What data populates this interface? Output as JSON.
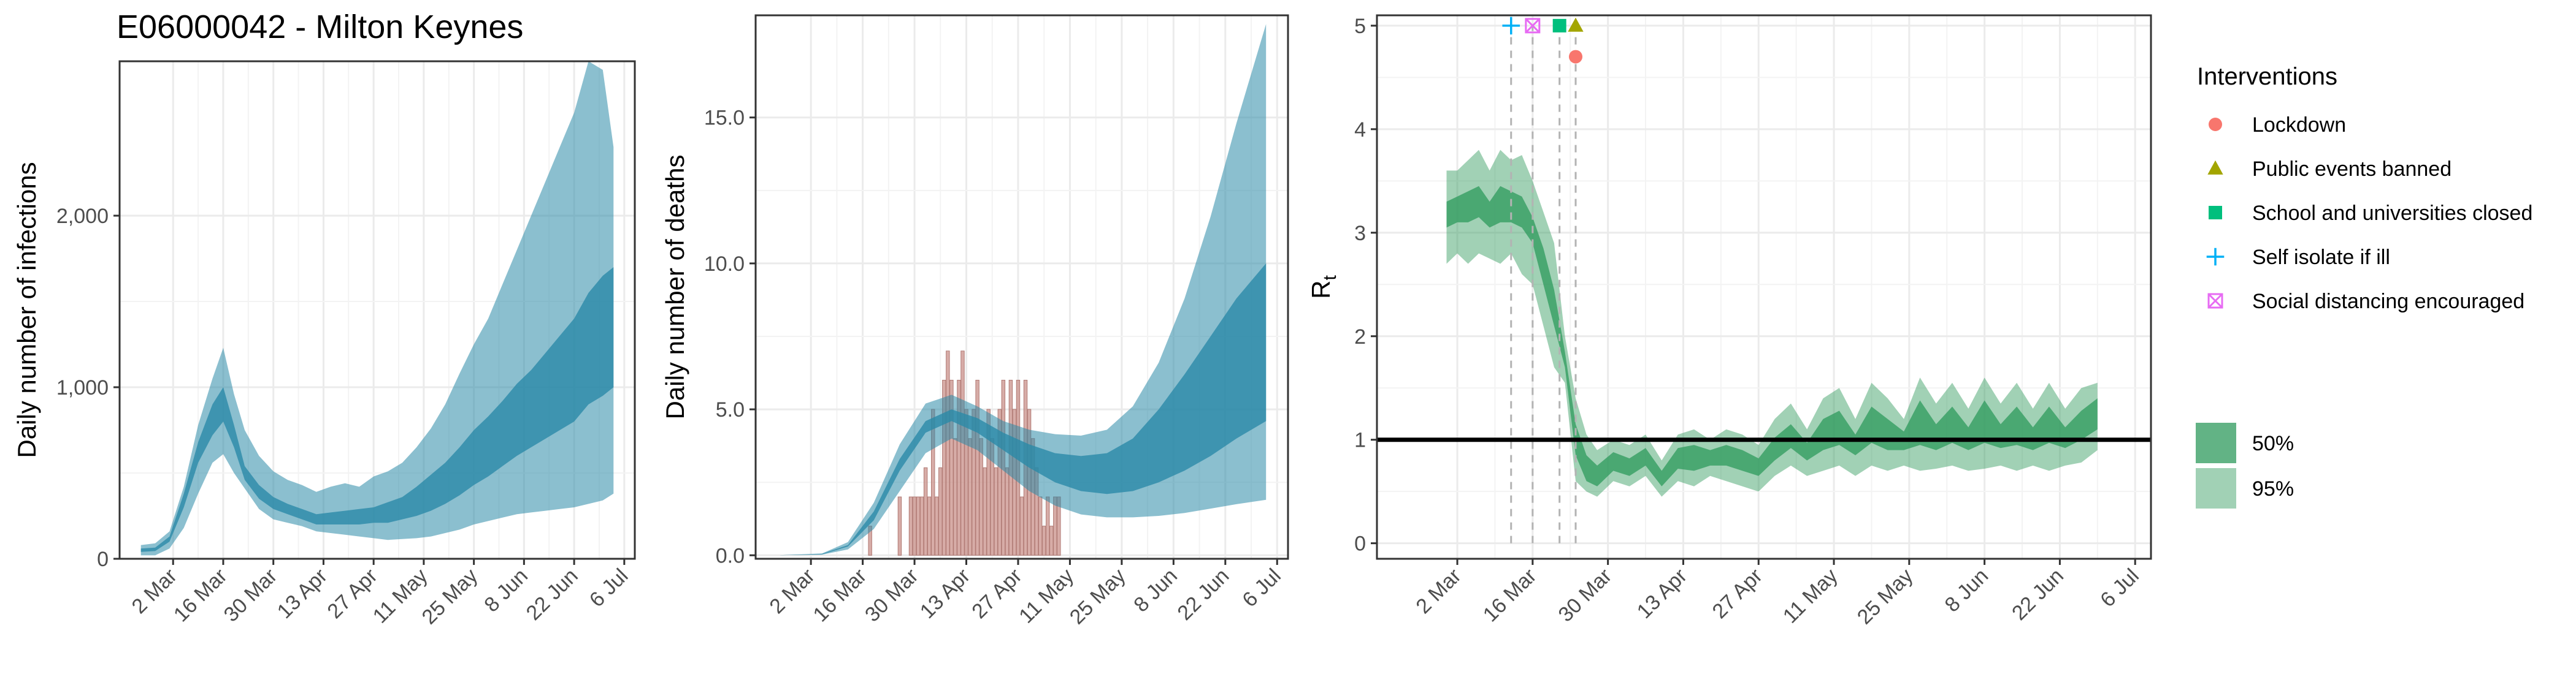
{
  "title": "E06000042 - Milton Keynes",
  "colors": {
    "infection_band": "#2b8aa8",
    "deaths_bar": "#c9908a",
    "rt_band": "#2e9a5c",
    "lockdown": "#f8766d",
    "public_events": "#a3a500",
    "schools": "#00bf7d",
    "self_isolate": "#00b0f6",
    "social_distancing": "#e76bf3"
  },
  "legend": {
    "interventions_title": "Interventions",
    "interventions": [
      {
        "label": "Lockdown",
        "shape": "circle",
        "color": "#f8766d"
      },
      {
        "label": "Public events banned",
        "shape": "triangle",
        "color": "#a3a500"
      },
      {
        "label": "School and universities closed",
        "shape": "square",
        "color": "#00bf7d"
      },
      {
        "label": "Self isolate if ill",
        "shape": "plus",
        "color": "#00b0f6"
      },
      {
        "label": "Social distancing encouraged",
        "shape": "boxx",
        "color": "#e76bf3"
      }
    ],
    "ci": [
      {
        "label": "50%",
        "color": "#2e9a5c",
        "opacity": 0.75
      },
      {
        "label": "95%",
        "color": "#2e9a5c",
        "opacity": 0.45
      }
    ]
  },
  "chart_data": [
    {
      "type": "area",
      "id": "infections",
      "title": "E06000042 - Milton Keynes",
      "ylabel": "Daily number of infections",
      "xlabel": "",
      "date_start": "2020-02-22",
      "date_end": "2020-07-03",
      "ylim": [
        0,
        2900
      ],
      "grid": true,
      "yticks": [
        0,
        1000,
        2000
      ],
      "ytick_labels": [
        "0",
        "1,000",
        "2,000"
      ],
      "xticks": [
        "2020-03-02",
        "2020-03-16",
        "2020-03-30",
        "2020-04-13",
        "2020-04-27",
        "2020-05-11",
        "2020-05-25",
        "2020-06-08",
        "2020-06-22",
        "2020-07-06"
      ],
      "xtick_labels": [
        "2 Mar",
        "16 Mar",
        "30 Mar",
        "13 Apr",
        "27 Apr",
        "11 May",
        "25 May",
        "8 Jun",
        "22 Jun",
        "6 Jul"
      ],
      "dates": [
        "2020-02-22",
        "2020-02-26",
        "2020-03-01",
        "2020-03-05",
        "2020-03-09",
        "2020-03-13",
        "2020-03-16",
        "2020-03-19",
        "2020-03-22",
        "2020-03-26",
        "2020-03-30",
        "2020-04-03",
        "2020-04-07",
        "2020-04-11",
        "2020-04-15",
        "2020-04-19",
        "2020-04-23",
        "2020-04-27",
        "2020-05-01",
        "2020-05-05",
        "2020-05-09",
        "2020-05-13",
        "2020-05-17",
        "2020-05-21",
        "2020-05-25",
        "2020-05-29",
        "2020-06-02",
        "2020-06-06",
        "2020-06-10",
        "2020-06-14",
        "2020-06-18",
        "2020-06-22",
        "2020-06-26",
        "2020-06-30",
        "2020-07-03"
      ],
      "ci95_low": [
        20,
        20,
        60,
        180,
        380,
        560,
        610,
        500,
        410,
        290,
        230,
        210,
        190,
        160,
        150,
        140,
        130,
        120,
        110,
        115,
        120,
        130,
        150,
        170,
        200,
        220,
        240,
        260,
        270,
        280,
        290,
        300,
        320,
        340,
        380
      ],
      "ci95_high": [
        80,
        90,
        160,
        420,
        780,
        1050,
        1230,
        960,
        750,
        600,
        510,
        460,
        430,
        390,
        420,
        440,
        420,
        480,
        510,
        560,
        650,
        760,
        900,
        1080,
        1250,
        1400,
        1600,
        1800,
        2000,
        2200,
        2400,
        2600,
        2900,
        2850,
        2400
      ],
      "ci50_low": [
        40,
        45,
        100,
        300,
        560,
        720,
        800,
        650,
        460,
        350,
        290,
        260,
        230,
        200,
        200,
        200,
        200,
        210,
        210,
        230,
        250,
        280,
        320,
        370,
        430,
        480,
        540,
        600,
        650,
        700,
        750,
        800,
        900,
        950,
        1000
      ],
      "ci50_high": [
        60,
        65,
        130,
        380,
        680,
        900,
        1000,
        780,
        540,
        430,
        360,
        320,
        290,
        260,
        270,
        280,
        290,
        300,
        330,
        360,
        420,
        490,
        560,
        650,
        750,
        830,
        920,
        1020,
        1100,
        1200,
        1300,
        1400,
        1550,
        1650,
        1700
      ]
    },
    {
      "type": "bar",
      "id": "deaths",
      "title": "",
      "ylabel": "Daily number of deaths",
      "xlabel": "",
      "date_start": "2020-02-22",
      "date_end": "2020-07-03",
      "ylim": [
        0,
        18.5
      ],
      "grid": true,
      "yticks": [
        0,
        5,
        10,
        15
      ],
      "ytick_labels": [
        "0.0",
        "5.0",
        "10.0",
        "15.0"
      ],
      "xticks": [
        "2020-03-02",
        "2020-03-16",
        "2020-03-30",
        "2020-04-13",
        "2020-04-27",
        "2020-05-11",
        "2020-05-25",
        "2020-06-08",
        "2020-06-22",
        "2020-07-06"
      ],
      "xtick_labels": [
        "2 Mar",
        "16 Mar",
        "30 Mar",
        "13 Apr",
        "27 Apr",
        "11 May",
        "25 May",
        "8 Jun",
        "22 Jun",
        "6 Jul"
      ],
      "bar_dates": [
        "2020-03-18",
        "2020-03-26",
        "2020-03-29",
        "2020-03-30",
        "2020-03-31",
        "2020-04-01",
        "2020-04-02",
        "2020-04-03",
        "2020-04-04",
        "2020-04-05",
        "2020-04-06",
        "2020-04-07",
        "2020-04-08",
        "2020-04-09",
        "2020-04-10",
        "2020-04-11",
        "2020-04-12",
        "2020-04-13",
        "2020-04-14",
        "2020-04-15",
        "2020-04-16",
        "2020-04-17",
        "2020-04-18",
        "2020-04-19",
        "2020-04-20",
        "2020-04-21",
        "2020-04-22",
        "2020-04-23",
        "2020-04-24",
        "2020-04-25",
        "2020-04-26",
        "2020-04-27",
        "2020-04-28",
        "2020-04-29",
        "2020-04-30",
        "2020-05-01",
        "2020-05-02",
        "2020-05-03",
        "2020-05-04",
        "2020-05-05",
        "2020-05-06",
        "2020-05-07",
        "2020-05-08"
      ],
      "bar_values": [
        1,
        2,
        2,
        2,
        2,
        2,
        3,
        2,
        5,
        2,
        3,
        6,
        7,
        6,
        4,
        6,
        7,
        5,
        4,
        5,
        6,
        4,
        3,
        5,
        4,
        3,
        5,
        6,
        3,
        6,
        5,
        6,
        2,
        6,
        5,
        4,
        3,
        2,
        1,
        2,
        1,
        2,
        2
      ],
      "dates": [
        "2020-02-22",
        "2020-03-05",
        "2020-03-12",
        "2020-03-19",
        "2020-03-26",
        "2020-04-02",
        "2020-04-09",
        "2020-04-16",
        "2020-04-23",
        "2020-04-30",
        "2020-05-07",
        "2020-05-14",
        "2020-05-21",
        "2020-05-28",
        "2020-06-04",
        "2020-06-11",
        "2020-06-18",
        "2020-06-25",
        "2020-07-03"
      ],
      "ci95_low": [
        0,
        0.02,
        0.2,
        0.9,
        2.2,
        3.5,
        4.0,
        3.6,
        2.9,
        2.2,
        1.7,
        1.4,
        1.3,
        1.3,
        1.35,
        1.45,
        1.6,
        1.75,
        1.9
      ],
      "ci95_high": [
        0,
        0.06,
        0.45,
        1.8,
        3.8,
        5.2,
        5.5,
        5.1,
        4.6,
        4.3,
        4.15,
        4.1,
        4.3,
        5.1,
        6.6,
        8.8,
        11.6,
        14.8,
        18.2
      ],
      "ci50_low": [
        0,
        0.03,
        0.3,
        1.2,
        2.9,
        4.2,
        4.6,
        4.2,
        3.6,
        3.0,
        2.5,
        2.2,
        2.1,
        2.2,
        2.5,
        2.9,
        3.4,
        4.0,
        4.6
      ],
      "ci50_high": [
        0,
        0.05,
        0.35,
        1.5,
        3.3,
        4.6,
        5.0,
        4.7,
        4.2,
        3.8,
        3.5,
        3.4,
        3.5,
        4.0,
        5.0,
        6.2,
        7.5,
        8.8,
        10.0
      ]
    },
    {
      "type": "area",
      "id": "rt",
      "title": "",
      "ylabel": "R",
      "ylabel_subscript": "t",
      "xlabel": "",
      "date_start": "2020-02-22",
      "date_end": "2020-07-03",
      "ylim": [
        0,
        5.1
      ],
      "grid": true,
      "reference_line": 1,
      "yticks": [
        0,
        1,
        2,
        3,
        4,
        5
      ],
      "ytick_labels": [
        "0",
        "1",
        "2",
        "3",
        "4",
        "5"
      ],
      "xticks": [
        "2020-03-02",
        "2020-03-16",
        "2020-03-30",
        "2020-04-13",
        "2020-04-27",
        "2020-05-11",
        "2020-05-25",
        "2020-06-08",
        "2020-06-22",
        "2020-07-06"
      ],
      "xtick_labels": [
        "2 Mar",
        "16 Mar",
        "30 Mar",
        "13 Apr",
        "27 Apr",
        "11 May",
        "25 May",
        "8 Jun",
        "22 Jun",
        "6 Jul"
      ],
      "dates": [
        "2020-02-29",
        "2020-03-02",
        "2020-03-04",
        "2020-03-06",
        "2020-03-08",
        "2020-03-10",
        "2020-03-12",
        "2020-03-14",
        "2020-03-16",
        "2020-03-18",
        "2020-03-20",
        "2020-03-22",
        "2020-03-24",
        "2020-03-26",
        "2020-03-28",
        "2020-03-31",
        "2020-04-03",
        "2020-04-06",
        "2020-04-09",
        "2020-04-12",
        "2020-04-15",
        "2020-04-18",
        "2020-04-21",
        "2020-04-24",
        "2020-04-27",
        "2020-04-30",
        "2020-05-03",
        "2020-05-06",
        "2020-05-09",
        "2020-05-12",
        "2020-05-15",
        "2020-05-18",
        "2020-05-21",
        "2020-05-24",
        "2020-05-27",
        "2020-05-30",
        "2020-06-02",
        "2020-06-05",
        "2020-06-08",
        "2020-06-11",
        "2020-06-14",
        "2020-06-17",
        "2020-06-20",
        "2020-06-23",
        "2020-06-26",
        "2020-06-29"
      ],
      "ci95_low": [
        2.7,
        2.8,
        2.7,
        2.8,
        2.75,
        2.7,
        2.8,
        2.6,
        2.5,
        2.1,
        1.7,
        1.55,
        0.6,
        0.5,
        0.45,
        0.6,
        0.55,
        0.65,
        0.45,
        0.6,
        0.55,
        0.65,
        0.6,
        0.55,
        0.5,
        0.65,
        0.75,
        0.65,
        0.7,
        0.75,
        0.65,
        0.75,
        0.7,
        0.75,
        0.7,
        0.72,
        0.75,
        0.7,
        0.72,
        0.75,
        0.7,
        0.75,
        0.7,
        0.75,
        0.78,
        0.9
      ],
      "ci95_high": [
        3.6,
        3.6,
        3.7,
        3.8,
        3.6,
        3.8,
        3.7,
        3.75,
        3.5,
        3.2,
        2.9,
        2.0,
        1.4,
        1.05,
        0.9,
        1.0,
        0.95,
        1.05,
        0.8,
        1.05,
        1.1,
        1.0,
        1.1,
        1.05,
        0.95,
        1.2,
        1.35,
        1.1,
        1.4,
        1.5,
        1.2,
        1.55,
        1.4,
        1.2,
        1.6,
        1.35,
        1.55,
        1.3,
        1.6,
        1.35,
        1.55,
        1.3,
        1.55,
        1.3,
        1.5,
        1.55
      ],
      "ci50_low": [
        3.05,
        3.1,
        3.1,
        3.15,
        3.05,
        3.1,
        3.1,
        3.05,
        2.9,
        2.5,
        2.1,
        1.7,
        0.85,
        0.6,
        0.55,
        0.7,
        0.65,
        0.75,
        0.55,
        0.72,
        0.7,
        0.75,
        0.75,
        0.7,
        0.65,
        0.8,
        0.92,
        0.8,
        0.9,
        0.95,
        0.85,
        0.97,
        0.9,
        0.9,
        0.95,
        0.9,
        0.97,
        0.9,
        0.97,
        0.92,
        0.95,
        0.9,
        0.97,
        0.92,
        1.0,
        1.1
      ],
      "ci50_high": [
        3.3,
        3.35,
        3.4,
        3.45,
        3.3,
        3.45,
        3.4,
        3.35,
        3.15,
        2.85,
        2.45,
        1.85,
        1.15,
        0.85,
        0.75,
        0.88,
        0.82,
        0.92,
        0.7,
        0.92,
        0.95,
        0.9,
        0.95,
        0.9,
        0.82,
        1.02,
        1.15,
        0.97,
        1.2,
        1.28,
        1.05,
        1.32,
        1.2,
        1.08,
        1.38,
        1.15,
        1.32,
        1.12,
        1.38,
        1.15,
        1.32,
        1.12,
        1.32,
        1.12,
        1.28,
        1.4
      ],
      "interventions": [
        {
          "label": "Self isolate if ill",
          "date": "2020-03-12",
          "y": 5.0,
          "shape": "plus",
          "color": "#00b0f6"
        },
        {
          "label": "Social distancing encouraged",
          "date": "2020-03-16",
          "y": 5.0,
          "shape": "boxx",
          "color": "#e76bf3"
        },
        {
          "label": "School and universities closed",
          "date": "2020-03-21",
          "y": 5.0,
          "shape": "square",
          "color": "#00bf7d"
        },
        {
          "label": "Public events banned",
          "date": "2020-03-24",
          "y": 5.0,
          "shape": "triangle",
          "color": "#a3a500"
        },
        {
          "label": "Lockdown",
          "date": "2020-03-24",
          "y": 4.7,
          "shape": "circle",
          "color": "#f8766d"
        }
      ]
    }
  ]
}
